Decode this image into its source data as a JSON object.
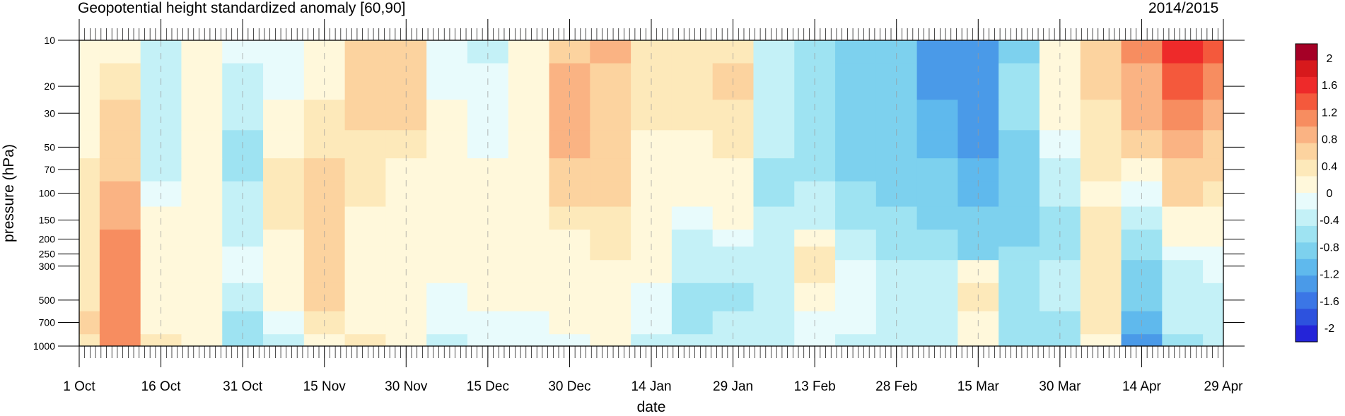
{
  "chart_data": {
    "type": "heatmap",
    "title": "Geopotential height standardized anomaly [60,90]",
    "season": "2014/2015",
    "xlabel": "date",
    "ylabel": "pressure (hPa)",
    "x_ticks": [
      "1 Oct",
      "16 Oct",
      "31 Oct",
      "15 Nov",
      "30 Nov",
      "15 Dec",
      "30 Dec",
      "14 Jan",
      "29 Jan",
      "13 Feb",
      "28 Feb",
      "15 Mar",
      "30 Mar",
      "14 Apr",
      "29 Apr"
    ],
    "y_ticks": [
      10,
      20,
      30,
      50,
      70,
      100,
      150,
      200,
      250,
      300,
      500,
      700,
      1000
    ],
    "y_scale": "log",
    "y_reversed": true,
    "legend": {
      "labels": [
        "2",
        "1.6",
        "1.2",
        "0.8",
        "0.4",
        "0",
        "-0.4",
        "-0.8",
        "-1.2",
        "-1.6",
        "-2"
      ],
      "colors": [
        "#a50026",
        "#d7191c",
        "#ee2a2a",
        "#f4593c",
        "#f78d60",
        "#fab383",
        "#fcd39f",
        "#fde9ba",
        "#fff8db",
        "#e8fbfc",
        "#c4f1f7",
        "#9ee3f2",
        "#7dd1ee",
        "#5fb9ed",
        "#4a9ae8",
        "#3b76e6",
        "#2d52de",
        "#2424d8"
      ]
    },
    "levels": [
      10,
      20,
      30,
      50,
      70,
      100,
      150,
      200,
      250,
      300,
      500,
      700,
      1000
    ],
    "dates": [
      "1 Oct",
      "8 Oct",
      "16 Oct",
      "24 Oct",
      "31 Oct",
      "8 Nov",
      "15 Nov",
      "23 Nov",
      "30 Nov",
      "8 Dec",
      "15 Dec",
      "23 Dec",
      "30 Dec",
      "7 Jan",
      "14 Jan",
      "22 Jan",
      "29 Jan",
      "6 Feb",
      "13 Feb",
      "21 Feb",
      "28 Feb",
      "8 Mar",
      "15 Mar",
      "23 Mar",
      "30 Mar",
      "7 Apr",
      "14 Apr",
      "22 Apr",
      "29 Apr"
    ],
    "values": [
      [
        0.1,
        0.2,
        -0.3,
        0.2,
        -0.2,
        -0.1,
        0.1,
        0.6,
        0.7,
        -0.1,
        -0.3,
        0.0,
        0.7,
        0.8,
        0.4,
        0.3,
        0.4,
        -0.4,
        -0.6,
        -0.9,
        -1.0,
        -1.4,
        -1.5,
        -0.8,
        0.0,
        0.6,
        1.0,
        1.6,
        1.4
      ],
      [
        0.2,
        0.4,
        -0.4,
        0.2,
        -0.5,
        -0.1,
        0.2,
        0.6,
        0.6,
        -0.1,
        -0.2,
        0.0,
        0.8,
        0.7,
        0.3,
        0.3,
        0.5,
        -0.4,
        -0.7,
        -1.0,
        -1.0,
        -1.3,
        -1.4,
        -0.7,
        0.0,
        0.5,
        0.9,
        1.3,
        1.0
      ],
      [
        0.2,
        0.6,
        -0.4,
        0.2,
        -0.5,
        0.1,
        0.3,
        0.5,
        0.5,
        0.0,
        -0.2,
        0.0,
        0.8,
        0.6,
        0.3,
        0.3,
        0.4,
        -0.5,
        -0.7,
        -0.9,
        -1.0,
        -1.2,
        -1.3,
        -0.7,
        0.0,
        0.4,
        0.8,
        1.0,
        0.9
      ],
      [
        0.2,
        0.6,
        -0.4,
        0.1,
        -0.6,
        0.2,
        0.4,
        0.3,
        0.3,
        0.0,
        -0.1,
        0.0,
        0.8,
        0.6,
        0.2,
        0.2,
        0.4,
        -0.5,
        -0.7,
        -0.9,
        -1.0,
        -1.1,
        -1.3,
        -0.8,
        -0.2,
        0.4,
        0.6,
        0.8,
        0.7
      ],
      [
        0.3,
        0.7,
        -0.3,
        0.1,
        -0.6,
        0.4,
        0.6,
        0.3,
        0.2,
        0.0,
        0.0,
        0.0,
        0.7,
        0.6,
        0.1,
        0.2,
        0.2,
        -0.6,
        -0.6,
        -0.8,
        -0.9,
        -1.0,
        -1.2,
        -0.9,
        -0.3,
        0.3,
        0.2,
        0.6,
        0.5
      ],
      [
        0.3,
        0.8,
        -0.2,
        0.0,
        -0.5,
        0.4,
        0.6,
        0.3,
        0.1,
        0.0,
        0.1,
        0.0,
        0.6,
        0.5,
        0.1,
        0.1,
        0.1,
        -0.6,
        -0.4,
        -0.7,
        -0.8,
        -0.9,
        -1.1,
        -0.9,
        -0.5,
        0.2,
        -0.2,
        0.5,
        0.4
      ],
      [
        0.4,
        0.9,
        0.0,
        0.0,
        -0.4,
        0.3,
        0.6,
        0.2,
        0.1,
        0.0,
        0.1,
        0.0,
        0.4,
        0.4,
        0.1,
        -0.2,
        0.1,
        -0.5,
        -0.3,
        -0.6,
        -0.7,
        -0.8,
        -1.0,
        -0.9,
        -0.6,
        0.3,
        -0.5,
        0.2,
        0.2
      ],
      [
        0.4,
        1.0,
        0.0,
        0.1,
        -0.3,
        0.2,
        0.6,
        0.2,
        0.1,
        0.0,
        0.1,
        0.0,
        0.2,
        0.3,
        0.0,
        -0.4,
        -0.2,
        -0.4,
        0.2,
        -0.4,
        -0.6,
        -0.7,
        -0.9,
        -0.8,
        -0.6,
        0.4,
        -0.6,
        0.0,
        0.0
      ],
      [
        0.4,
        1.0,
        0.0,
        0.1,
        -0.2,
        0.2,
        0.6,
        0.2,
        0.1,
        0.0,
        0.1,
        0.0,
        0.1,
        0.3,
        0.0,
        -0.4,
        -0.4,
        -0.4,
        0.3,
        -0.3,
        -0.6,
        -0.6,
        -0.8,
        -0.7,
        -0.6,
        0.4,
        -0.7,
        -0.1,
        -0.1
      ],
      [
        0.4,
        1.0,
        0.1,
        0.1,
        -0.2,
        0.1,
        0.6,
        0.2,
        0.1,
        0.0,
        0.0,
        0.0,
        0.0,
        0.2,
        0.0,
        -0.5,
        -0.5,
        -0.4,
        0.3,
        -0.2,
        -0.4,
        -0.5,
        0.2,
        -0.6,
        -0.5,
        0.4,
        -0.8,
        -0.3,
        -0.2
      ],
      [
        0.4,
        1.1,
        0.1,
        0.1,
        -0.4,
        0.1,
        0.5,
        0.1,
        0.0,
        -0.1,
        0.0,
        0.0,
        0.0,
        0.1,
        -0.1,
        -0.6,
        -0.6,
        -0.5,
        0.0,
        -0.2,
        -0.3,
        -0.4,
        0.4,
        -0.6,
        -0.5,
        0.4,
        -1.0,
        -0.4,
        -0.3
      ],
      [
        0.5,
        1.2,
        0.2,
        0.0,
        -0.6,
        -0.2,
        0.3,
        0.2,
        0.0,
        -0.2,
        -0.1,
        -0.1,
        0.0,
        0.1,
        -0.2,
        -0.6,
        -0.4,
        -0.5,
        -0.1,
        -0.2,
        -0.3,
        -0.4,
        0.2,
        -0.6,
        -0.6,
        0.3,
        -1.2,
        -0.5,
        -0.3
      ],
      [
        0.4,
        1.1,
        0.3,
        0.0,
        -0.7,
        -0.4,
        0.2,
        0.3,
        0.0,
        -0.3,
        -0.2,
        -0.2,
        -0.1,
        0.1,
        -0.3,
        -0.5,
        -0.3,
        -0.5,
        -0.2,
        -0.3,
        -0.3,
        -0.5,
        0.0,
        -0.7,
        -0.7,
        0.1,
        -1.4,
        -0.6,
        -0.4
      ]
    ],
    "values_note": "anomaly by pressure level (row) and date (column)"
  }
}
